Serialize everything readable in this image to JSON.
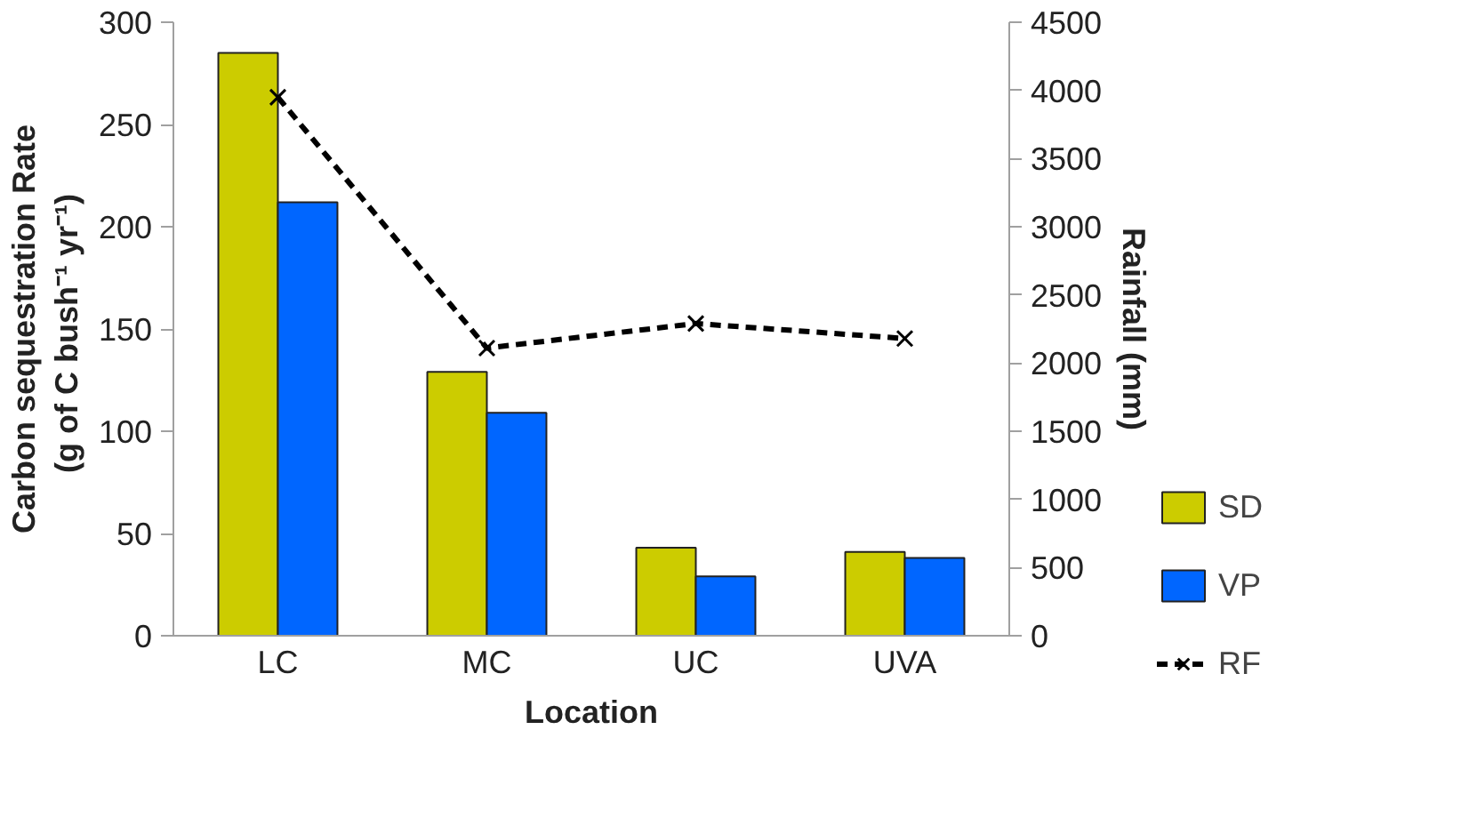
{
  "chart_data": {
    "type": "bar",
    "xlabel": "Location",
    "ylabel": "Carbon sequestration Rate\n(g of C  bush⁻¹ yr⁻¹)",
    "y2label": "Rainfall (mm)",
    "categories": [
      "LC",
      "MC",
      "UC",
      "UVA"
    ],
    "series": [
      {
        "name": "SD",
        "color": "#cccc00",
        "values": [
          285,
          129,
          43,
          41
        ]
      },
      {
        "name": "VP",
        "color": "#0066ff",
        "values": [
          212,
          109,
          29,
          38
        ]
      },
      {
        "name": "RF",
        "type": "line",
        "axis": "y2",
        "color": "#000000",
        "marker": "cross",
        "line_style": "dashed",
        "values": [
          3950,
          2110,
          2290,
          2180
        ]
      }
    ],
    "ylim": [
      0,
      300
    ],
    "yticks": [
      0,
      50,
      100,
      150,
      200,
      250,
      300
    ],
    "y2lim": [
      0,
      4500
    ],
    "y2ticks": [
      0,
      500,
      1000,
      1500,
      2000,
      2500,
      3000,
      3500,
      4000,
      4500
    ],
    "grid": false,
    "legend": "bottom right"
  }
}
